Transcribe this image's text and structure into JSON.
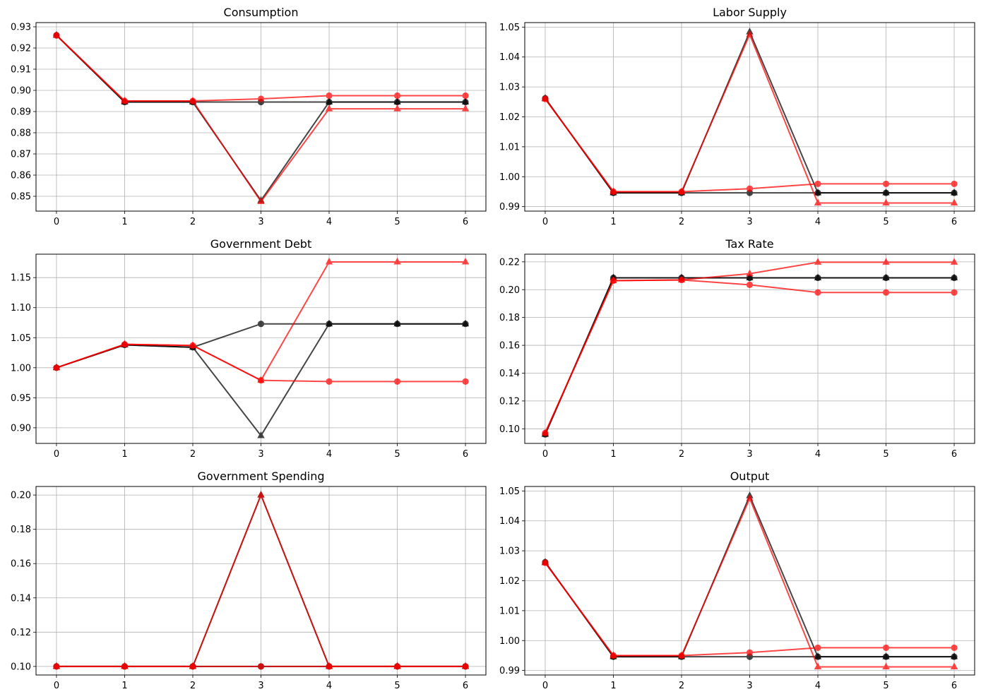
{
  "chart_data": [
    {
      "type": "line",
      "title": "Consumption",
      "x": [
        0,
        1,
        2,
        3,
        4,
        5,
        6
      ],
      "xticks": [
        "0",
        "1",
        "2",
        "3",
        "4",
        "5",
        "6"
      ],
      "ylim": [
        0.843,
        0.932
      ],
      "yticks": [
        "0.85",
        "0.86",
        "0.87",
        "0.88",
        "0.89",
        "0.90",
        "0.91",
        "0.92",
        "0.93"
      ],
      "grid": true,
      "series": [
        {
          "color": "#000000",
          "marker": "circle",
          "values": [
            0.926,
            0.8945,
            0.8945,
            0.8945,
            0.8945,
            0.8945,
            0.8945
          ]
        },
        {
          "color": "#000000",
          "marker": "triangle",
          "values": [
            0.926,
            0.8945,
            0.8945,
            0.848,
            0.8945,
            0.8945,
            0.8945
          ]
        },
        {
          "color": "#ff0000",
          "marker": "circle",
          "values": [
            0.926,
            0.895,
            0.895,
            0.896,
            0.8975,
            0.8975,
            0.8975
          ]
        },
        {
          "color": "#ff0000",
          "marker": "triangle",
          "values": [
            0.926,
            0.895,
            0.895,
            0.8475,
            0.8913,
            0.8913,
            0.8913
          ]
        }
      ]
    },
    {
      "type": "line",
      "title": "Labor Supply",
      "x": [
        0,
        1,
        2,
        3,
        4,
        5,
        6
      ],
      "xticks": [
        "0",
        "1",
        "2",
        "3",
        "4",
        "5",
        "6"
      ],
      "ylim": [
        0.9885,
        1.0515
      ],
      "yticks": [
        "0.99",
        "1.00",
        "1.01",
        "1.02",
        "1.03",
        "1.04",
        "1.05"
      ],
      "grid": true,
      "series": [
        {
          "color": "#000000",
          "marker": "circle",
          "values": [
            1.0262,
            0.9946,
            0.9946,
            0.9946,
            0.9946,
            0.9946,
            0.9946
          ]
        },
        {
          "color": "#000000",
          "marker": "triangle",
          "values": [
            1.0262,
            0.9946,
            0.9946,
            1.0484,
            0.9946,
            0.9946,
            0.9946
          ]
        },
        {
          "color": "#ff0000",
          "marker": "circle",
          "values": [
            1.026,
            0.995,
            0.995,
            0.996,
            0.9976,
            0.9976,
            0.9976
          ]
        },
        {
          "color": "#ff0000",
          "marker": "triangle",
          "values": [
            1.026,
            0.995,
            0.995,
            1.0475,
            0.9912,
            0.9912,
            0.9912
          ]
        }
      ]
    },
    {
      "type": "line",
      "title": "Government Debt",
      "x": [
        0,
        1,
        2,
        3,
        4,
        5,
        6
      ],
      "xticks": [
        "0",
        "1",
        "2",
        "3",
        "4",
        "5",
        "6"
      ],
      "ylim": [
        0.874,
        1.189
      ],
      "yticks": [
        "0.90",
        "0.95",
        "1.00",
        "1.05",
        "1.10",
        "1.15"
      ],
      "grid": true,
      "series": [
        {
          "color": "#000000",
          "marker": "circle",
          "values": [
            1.0,
            1.038,
            1.034,
            1.073,
            1.073,
            1.073,
            1.073
          ]
        },
        {
          "color": "#000000",
          "marker": "triangle",
          "values": [
            1.0,
            1.038,
            1.034,
            0.887,
            1.073,
            1.073,
            1.073
          ]
        },
        {
          "color": "#ff0000",
          "marker": "circle",
          "values": [
            1.0,
            1.039,
            1.037,
            0.979,
            0.977,
            0.977,
            0.977
          ]
        },
        {
          "color": "#ff0000",
          "marker": "triangle",
          "values": [
            1.0,
            1.039,
            1.037,
            0.979,
            1.176,
            1.176,
            1.176
          ]
        }
      ]
    },
    {
      "type": "line",
      "title": "Tax Rate",
      "x": [
        0,
        1,
        2,
        3,
        4,
        5,
        6
      ],
      "xticks": [
        "0",
        "1",
        "2",
        "3",
        "4",
        "5",
        "6"
      ],
      "ylim": [
        0.0895,
        0.2255
      ],
      "yticks": [
        "0.10",
        "0.12",
        "0.14",
        "0.16",
        "0.18",
        "0.20",
        "0.22"
      ],
      "grid": true,
      "series": [
        {
          "color": "#000000",
          "marker": "circle",
          "values": [
            0.096,
            0.2085,
            0.2085,
            0.2085,
            0.2085,
            0.2085,
            0.2085
          ]
        },
        {
          "color": "#000000",
          "marker": "triangle",
          "values": [
            0.096,
            0.2085,
            0.2085,
            0.2085,
            0.2085,
            0.2085,
            0.2085
          ]
        },
        {
          "color": "#ff0000",
          "marker": "circle",
          "values": [
            0.097,
            0.2065,
            0.207,
            0.2035,
            0.198,
            0.198,
            0.198
          ]
        },
        {
          "color": "#ff0000",
          "marker": "triangle",
          "values": [
            0.097,
            0.2065,
            0.207,
            0.2115,
            0.2197,
            0.2197,
            0.2197
          ]
        }
      ]
    },
    {
      "type": "line",
      "title": "Government Spending",
      "x": [
        0,
        1,
        2,
        3,
        4,
        5,
        6
      ],
      "xticks": [
        "0",
        "1",
        "2",
        "3",
        "4",
        "5",
        "6"
      ],
      "ylim": [
        0.095,
        0.205
      ],
      "yticks": [
        "0.10",
        "0.12",
        "0.14",
        "0.16",
        "0.18",
        "0.20"
      ],
      "grid": true,
      "series": [
        {
          "color": "#000000",
          "marker": "circle",
          "values": [
            0.1,
            0.1,
            0.1,
            0.1,
            0.1,
            0.1,
            0.1
          ]
        },
        {
          "color": "#000000",
          "marker": "triangle",
          "values": [
            0.1,
            0.1,
            0.1,
            0.2,
            0.1,
            0.1,
            0.1
          ]
        },
        {
          "color": "#ff0000",
          "marker": "circle",
          "values": [
            0.1,
            0.1,
            0.1,
            0.1,
            0.1,
            0.1,
            0.1
          ]
        },
        {
          "color": "#ff0000",
          "marker": "triangle",
          "values": [
            0.1,
            0.1,
            0.1,
            0.2,
            0.1,
            0.1,
            0.1
          ]
        }
      ]
    },
    {
      "type": "line",
      "title": "Output",
      "x": [
        0,
        1,
        2,
        3,
        4,
        5,
        6
      ],
      "xticks": [
        "0",
        "1",
        "2",
        "3",
        "4",
        "5",
        "6"
      ],
      "ylim": [
        0.9885,
        1.0515
      ],
      "yticks": [
        "0.99",
        "1.00",
        "1.01",
        "1.02",
        "1.03",
        "1.04",
        "1.05"
      ],
      "grid": true,
      "series": [
        {
          "color": "#000000",
          "marker": "circle",
          "values": [
            1.0262,
            0.9946,
            0.9946,
            0.9946,
            0.9946,
            0.9946,
            0.9946
          ]
        },
        {
          "color": "#000000",
          "marker": "triangle",
          "values": [
            1.0262,
            0.9946,
            0.9946,
            1.0484,
            0.9946,
            0.9946,
            0.9946
          ]
        },
        {
          "color": "#ff0000",
          "marker": "circle",
          "values": [
            1.026,
            0.995,
            0.995,
            0.996,
            0.9976,
            0.9976,
            0.9976
          ]
        },
        {
          "color": "#ff0000",
          "marker": "triangle",
          "values": [
            1.026,
            0.995,
            0.995,
            1.0475,
            0.9912,
            0.9912,
            0.9912
          ]
        }
      ]
    }
  ]
}
